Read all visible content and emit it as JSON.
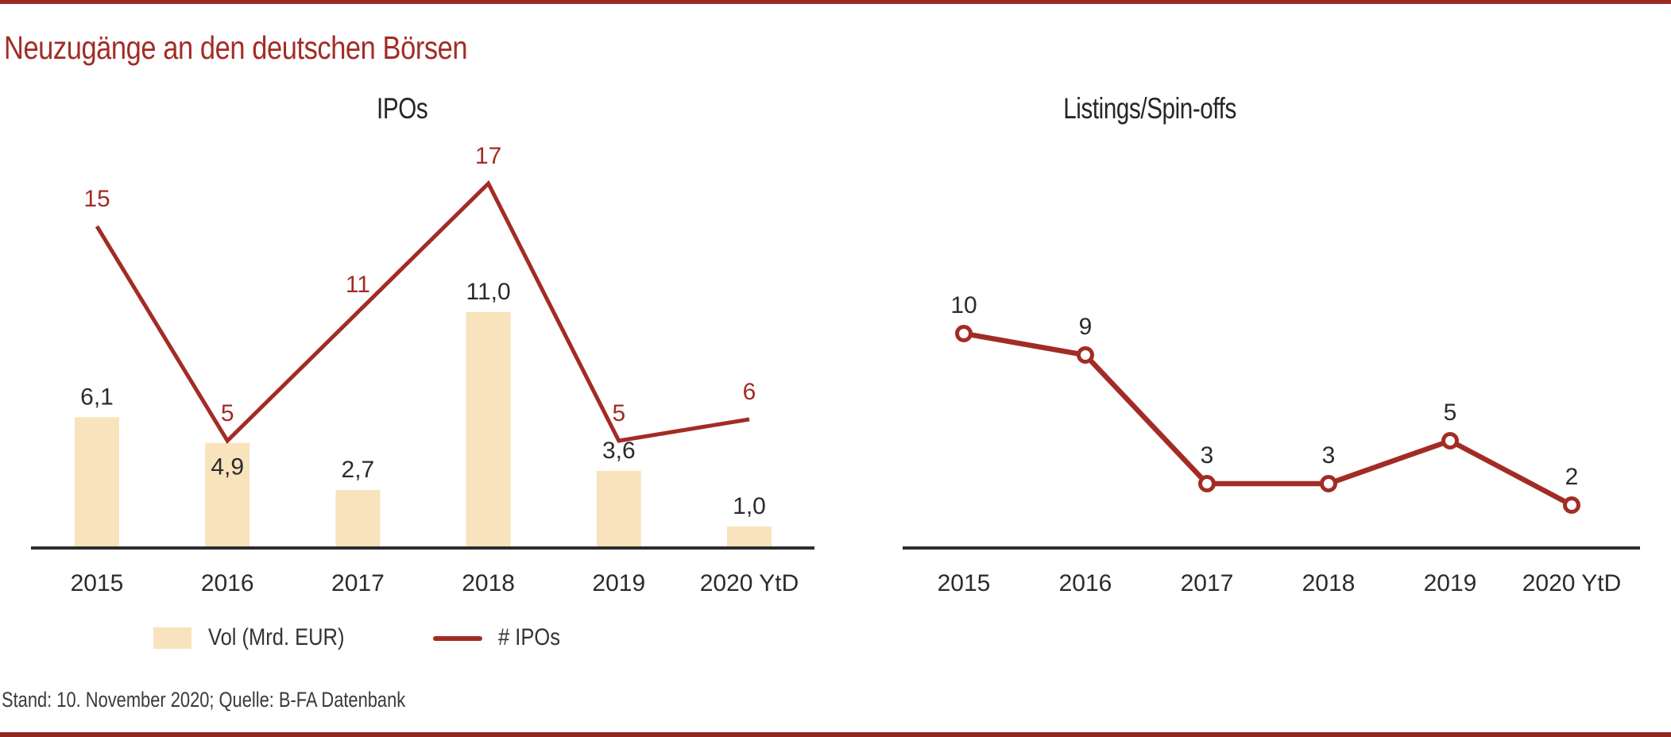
{
  "page": {
    "title": "Neuzugänge an den deutschen Börsen",
    "footer": "Stand: 10. November 2020; Quelle: B-FA Datenbank"
  },
  "colors": {
    "accent_red": "#A22C25",
    "bar_fill": "#F8E3BC",
    "axis": "#2D2D2D",
    "text_dark": "#2B2B2B",
    "rule_top": "#9A2A23",
    "rule_bottom": "#8F2620"
  },
  "chart_data": [
    {
      "type": "bar+line",
      "title": "IPOs",
      "categories": [
        "2015",
        "2016",
        "2017",
        "2018",
        "2019",
        "2020 YtD"
      ],
      "series": [
        {
          "name": "Vol (Mrd. EUR)",
          "kind": "bar",
          "values": [
            6.1,
            4.9,
            2.7,
            11.0,
            3.6,
            1.0
          ],
          "labels": [
            "6,1",
            "4,9",
            "2,7",
            "11,0",
            "3,6",
            "1,0"
          ]
        },
        {
          "name": "# IPOs",
          "kind": "line",
          "values": [
            15,
            5,
            11,
            17,
            5,
            6
          ],
          "labels": [
            "15",
            "5",
            "11",
            "17",
            "5",
            "6"
          ]
        }
      ],
      "ylim": [
        0,
        18
      ],
      "grid": false,
      "legend_position": "bottom"
    },
    {
      "type": "line",
      "title": "Listings/Spin-offs",
      "categories": [
        "2015",
        "2016",
        "2017",
        "2018",
        "2019",
        "2020 YtD"
      ],
      "series": [
        {
          "name": "Listings/Spin-offs",
          "kind": "line",
          "markers": true,
          "values": [
            10,
            9,
            3,
            3,
            5,
            2
          ],
          "labels": [
            "10",
            "9",
            "3",
            "3",
            "5",
            "2"
          ]
        }
      ],
      "ylim": [
        0,
        18
      ],
      "grid": false,
      "legend_position": "none"
    }
  ]
}
